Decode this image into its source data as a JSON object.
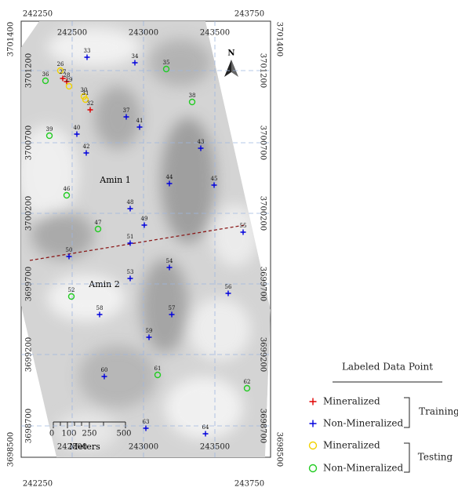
{
  "frame": {
    "corner_easting": [
      "242250",
      "243750"
    ],
    "corner_northing": [
      "3701400",
      "3698500"
    ],
    "grid_easting": [
      "242500",
      "243000",
      "243500"
    ],
    "grid_northing": [
      "3701200",
      "3700700",
      "3700200",
      "3699700",
      "3699200",
      "3698700"
    ]
  },
  "zones": [
    "Amin 1",
    "Amin 2"
  ],
  "north": "N",
  "scale_bar": {
    "ticks": [
      "0",
      "100",
      "250",
      "500"
    ],
    "unit": "Meters"
  },
  "points": [
    "26",
    "27",
    "28",
    "29",
    "30",
    "31",
    "32",
    "33",
    "34",
    "35",
    "36",
    "37",
    "38",
    "39",
    "40",
    "41",
    "42",
    "43",
    "44",
    "45",
    "46",
    "47",
    "48",
    "49",
    "50",
    "51",
    "52",
    "53",
    "54",
    "55",
    "56",
    "57",
    "58",
    "59",
    "60",
    "61",
    "62",
    "63",
    "64"
  ],
  "legend": {
    "title": "Labeled Data Point",
    "items": [
      "Mineralized",
      "Non-Mineralized",
      "Mineralized",
      "Non-Mineralized"
    ],
    "groups": [
      "Training",
      "Testing"
    ]
  }
}
